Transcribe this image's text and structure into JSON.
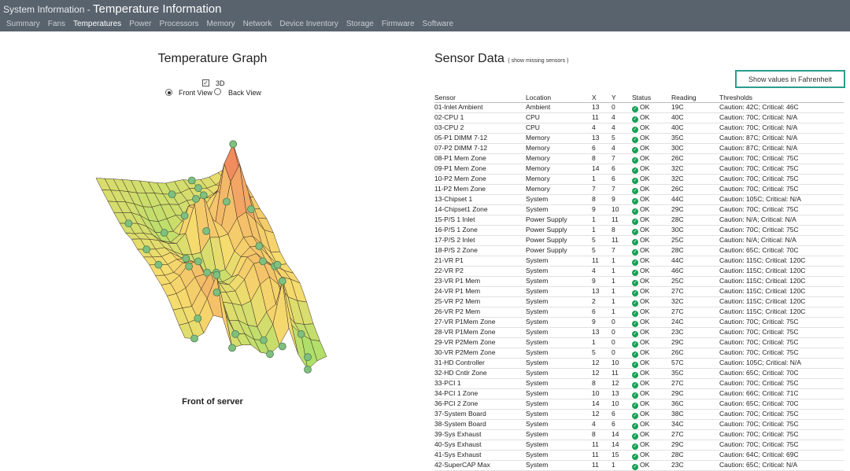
{
  "header": {
    "app_title": "System Information",
    "separator": " - ",
    "page_title": "Temperature Information",
    "tabs": [
      {
        "label": "Summary",
        "active": false
      },
      {
        "label": "Fans",
        "active": false
      },
      {
        "label": "Temperatures",
        "active": true
      },
      {
        "label": "Power",
        "active": false
      },
      {
        "label": "Processors",
        "active": false
      },
      {
        "label": "Memory",
        "active": false
      },
      {
        "label": "Network",
        "active": false
      },
      {
        "label": "Device Inventory",
        "active": false
      },
      {
        "label": "Storage",
        "active": false
      },
      {
        "label": "Firmware",
        "active": false
      },
      {
        "label": "Software",
        "active": false
      }
    ]
  },
  "graph": {
    "title": "Temperature Graph",
    "toggle_3d_label": "3D",
    "toggle_3d_checked": true,
    "front_view_label": "Front View",
    "back_view_label": "Back View",
    "selected_view": "front",
    "caption": "Front of server"
  },
  "sensor_panel": {
    "title": "Sensor Data",
    "missing_link": "( show missing sensors )",
    "fahrenheit_button": "Show values in Fahrenheit",
    "columns": [
      "Sensor",
      "Location",
      "X",
      "Y",
      "Status",
      "Reading",
      "Thresholds"
    ],
    "rows": [
      {
        "sensor": "01-Inlet Ambient",
        "location": "Ambient",
        "x": "13",
        "y": "0",
        "status": "OK",
        "reading": "19C",
        "thresholds": "Caution: 42C; Critical: 46C"
      },
      {
        "sensor": "02-CPU 1",
        "location": "CPU",
        "x": "11",
        "y": "4",
        "status": "OK",
        "reading": "40C",
        "thresholds": "Caution: 70C; Critical: N/A"
      },
      {
        "sensor": "03-CPU 2",
        "location": "CPU",
        "x": "4",
        "y": "4",
        "status": "OK",
        "reading": "40C",
        "thresholds": "Caution: 70C; Critical: N/A"
      },
      {
        "sensor": "05-P1 DIMM 7-12",
        "location": "Memory",
        "x": "13",
        "y": "5",
        "status": "OK",
        "reading": "35C",
        "thresholds": "Caution: 87C; Critical: N/A"
      },
      {
        "sensor": "07-P2 DIMM 7-12",
        "location": "Memory",
        "x": "6",
        "y": "4",
        "status": "OK",
        "reading": "30C",
        "thresholds": "Caution: 87C; Critical: N/A"
      },
      {
        "sensor": "08-P1 Mem Zone",
        "location": "Memory",
        "x": "8",
        "y": "7",
        "status": "OK",
        "reading": "26C",
        "thresholds": "Caution: 70C; Critical: 75C"
      },
      {
        "sensor": "09-P1 Mem Zone",
        "location": "Memory",
        "x": "14",
        "y": "6",
        "status": "OK",
        "reading": "32C",
        "thresholds": "Caution: 70C; Critical: 75C"
      },
      {
        "sensor": "10-P2 Mem Zone",
        "location": "Memory",
        "x": "1",
        "y": "6",
        "status": "OK",
        "reading": "32C",
        "thresholds": "Caution: 70C; Critical: 75C"
      },
      {
        "sensor": "11-P2 Mem Zone",
        "location": "Memory",
        "x": "7",
        "y": "7",
        "status": "OK",
        "reading": "26C",
        "thresholds": "Caution: 70C; Critical: 75C"
      },
      {
        "sensor": "13-Chipset 1",
        "location": "System",
        "x": "8",
        "y": "9",
        "status": "OK",
        "reading": "44C",
        "thresholds": "Caution: 105C; Critical: N/A"
      },
      {
        "sensor": "14-Chipset1 Zone",
        "location": "System",
        "x": "9",
        "y": "10",
        "status": "OK",
        "reading": "29C",
        "thresholds": "Caution: 70C; Critical: 75C"
      },
      {
        "sensor": "15-P/S 1 Inlet",
        "location": "Power Supply",
        "x": "1",
        "y": "11",
        "status": "OK",
        "reading": "28C",
        "thresholds": "Caution: N/A; Critical: N/A"
      },
      {
        "sensor": "16-P/S 1 Zone",
        "location": "Power Supply",
        "x": "1",
        "y": "8",
        "status": "OK",
        "reading": "30C",
        "thresholds": "Caution: 70C; Critical: 75C"
      },
      {
        "sensor": "17-P/S 2 Inlet",
        "location": "Power Supply",
        "x": "5",
        "y": "11",
        "status": "OK",
        "reading": "25C",
        "thresholds": "Caution: N/A; Critical: N/A"
      },
      {
        "sensor": "18-P/S 2 Zone",
        "location": "Power Supply",
        "x": "5",
        "y": "7",
        "status": "OK",
        "reading": "28C",
        "thresholds": "Caution: 65C; Critical: 70C"
      },
      {
        "sensor": "21-VR P1",
        "location": "System",
        "x": "11",
        "y": "1",
        "status": "OK",
        "reading": "44C",
        "thresholds": "Caution: 115C; Critical: 120C"
      },
      {
        "sensor": "22-VR P2",
        "location": "System",
        "x": "4",
        "y": "1",
        "status": "OK",
        "reading": "46C",
        "thresholds": "Caution: 115C; Critical: 120C"
      },
      {
        "sensor": "23-VR P1 Mem",
        "location": "System",
        "x": "9",
        "y": "1",
        "status": "OK",
        "reading": "25C",
        "thresholds": "Caution: 115C; Critical: 120C"
      },
      {
        "sensor": "24-VR P1 Mem",
        "location": "System",
        "x": "13",
        "y": "1",
        "status": "OK",
        "reading": "27C",
        "thresholds": "Caution: 115C; Critical: 120C"
      },
      {
        "sensor": "25-VR P2 Mem",
        "location": "System",
        "x": "2",
        "y": "1",
        "status": "OK",
        "reading": "32C",
        "thresholds": "Caution: 115C; Critical: 120C"
      },
      {
        "sensor": "26-VR P2 Mem",
        "location": "System",
        "x": "6",
        "y": "1",
        "status": "OK",
        "reading": "27C",
        "thresholds": "Caution: 115C; Critical: 120C"
      },
      {
        "sensor": "27-VR P1Mem Zone",
        "location": "System",
        "x": "9",
        "y": "0",
        "status": "OK",
        "reading": "24C",
        "thresholds": "Caution: 70C; Critical: 75C"
      },
      {
        "sensor": "28-VR P1Mem Zone",
        "location": "System",
        "x": "13",
        "y": "0",
        "status": "OK",
        "reading": "23C",
        "thresholds": "Caution: 70C; Critical: 75C"
      },
      {
        "sensor": "29-VR P2Mem Zone",
        "location": "System",
        "x": "1",
        "y": "0",
        "status": "OK",
        "reading": "29C",
        "thresholds": "Caution: 70C; Critical: 75C"
      },
      {
        "sensor": "30-VR P2Mem Zone",
        "location": "System",
        "x": "5",
        "y": "0",
        "status": "OK",
        "reading": "26C",
        "thresholds": "Caution: 70C; Critical: 75C"
      },
      {
        "sensor": "31-HD Controller",
        "location": "System",
        "x": "12",
        "y": "10",
        "status": "OK",
        "reading": "57C",
        "thresholds": "Caution: 105C; Critical: N/A"
      },
      {
        "sensor": "32-HD Cntlr Zone",
        "location": "System",
        "x": "12",
        "y": "11",
        "status": "OK",
        "reading": "35C",
        "thresholds": "Caution: 65C; Critical: 70C"
      },
      {
        "sensor": "33-PCI 1",
        "location": "System",
        "x": "8",
        "y": "12",
        "status": "OK",
        "reading": "27C",
        "thresholds": "Caution: 70C; Critical: 75C"
      },
      {
        "sensor": "34-PCI 1 Zone",
        "location": "System",
        "x": "10",
        "y": "13",
        "status": "OK",
        "reading": "29C",
        "thresholds": "Caution: 66C; Critical: 71C"
      },
      {
        "sensor": "36-PCI 2 Zone",
        "location": "System",
        "x": "14",
        "y": "10",
        "status": "OK",
        "reading": "36C",
        "thresholds": "Caution: 65C; Critical: 70C"
      },
      {
        "sensor": "37-System Board",
        "location": "System",
        "x": "12",
        "y": "6",
        "status": "OK",
        "reading": "38C",
        "thresholds": "Caution: 70C; Critical: 75C"
      },
      {
        "sensor": "38-System Board",
        "location": "System",
        "x": "4",
        "y": "6",
        "status": "OK",
        "reading": "34C",
        "thresholds": "Caution: 70C; Critical: 75C"
      },
      {
        "sensor": "39-Sys Exhaust",
        "location": "System",
        "x": "8",
        "y": "14",
        "status": "OK",
        "reading": "27C",
        "thresholds": "Caution: 70C; Critical: 75C"
      },
      {
        "sensor": "40-Sys Exhaust",
        "location": "System",
        "x": "11",
        "y": "14",
        "status": "OK",
        "reading": "29C",
        "thresholds": "Caution: 70C; Critical: 75C"
      },
      {
        "sensor": "41-Sys Exhaust",
        "location": "System",
        "x": "11",
        "y": "15",
        "status": "OK",
        "reading": "28C",
        "thresholds": "Caution: 64C; Critical: 69C"
      },
      {
        "sensor": "42-SuperCAP Max",
        "location": "System",
        "x": "11",
        "y": "1",
        "status": "OK",
        "reading": "23C",
        "thresholds": "Caution: 65C; Critical: N/A"
      }
    ]
  },
  "colors": {
    "header_bg": "#59636e",
    "ok_green": "#1a9e55",
    "button_border": "#2a9d8f",
    "surface_low": "#8ee06a",
    "surface_mid": "#f5dc6e",
    "surface_high": "#f07a5c",
    "sensor_dot": "#7fbf7f"
  }
}
